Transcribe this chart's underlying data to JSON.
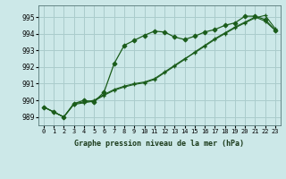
{
  "title": "Graphe pression niveau de la mer (hPa)",
  "background_color": "#cce8e8",
  "grid_color": "#aacccc",
  "line_color": "#1a5c1a",
  "x_labels": [
    "0",
    "1",
    "2",
    "3",
    "4",
    "5",
    "6",
    "7",
    "8",
    "9",
    "10",
    "11",
    "12",
    "13",
    "14",
    "15",
    "16",
    "17",
    "18",
    "19",
    "20",
    "21",
    "22",
    "23"
  ],
  "ylim": [
    988.5,
    995.7
  ],
  "yticks": [
    989,
    990,
    991,
    992,
    993,
    994,
    995
  ],
  "series_main": [
    989.6,
    989.3,
    989.0,
    989.8,
    990.0,
    989.9,
    990.5,
    992.2,
    993.3,
    993.6,
    993.9,
    994.15,
    994.1,
    993.8,
    993.65,
    993.85,
    994.1,
    994.25,
    994.5,
    994.65,
    995.05,
    995.05,
    994.85,
    994.2
  ],
  "series_b": [
    989.6,
    989.3,
    989.0,
    989.8,
    989.9,
    990.0,
    990.35,
    990.65,
    990.85,
    991.0,
    991.1,
    991.3,
    991.7,
    992.1,
    992.5,
    992.85,
    993.25,
    993.65,
    994.0,
    994.35,
    994.65,
    994.95,
    995.1,
    994.3
  ],
  "series_c": [
    989.6,
    989.3,
    989.0,
    989.75,
    989.85,
    989.95,
    990.3,
    990.6,
    990.8,
    990.95,
    991.05,
    991.25,
    991.65,
    992.05,
    992.45,
    992.9,
    993.3,
    993.7,
    994.05,
    994.4,
    994.7,
    995.0,
    994.75,
    994.2
  ]
}
